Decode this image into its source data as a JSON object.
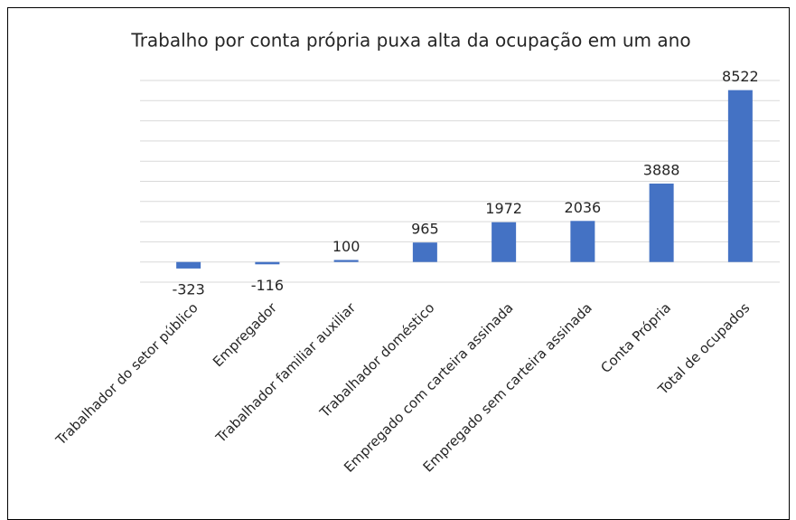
{
  "chart_data": {
    "type": "bar",
    "title": "Trabalho por conta própria puxa alta da ocupação em um ano",
    "categories": [
      "Trabalhador do setor público",
      "Empregador",
      "Trabalhador familiar auxiliar",
      "Trabalhador doméstico",
      "Empregado com carteira assinada",
      "Empregado sem carteira assinada",
      "Conta Própria",
      "Total de ocupados"
    ],
    "values": [
      -323,
      -116,
      100,
      965,
      1972,
      2036,
      3888,
      8522
    ],
    "color": "#4472c4",
    "ylim": [
      -1000,
      9000
    ],
    "yticks": [
      -1000,
      0,
      1000,
      2000,
      3000,
      4000,
      5000,
      6000,
      7000,
      8000,
      9000
    ],
    "grid": true
  }
}
